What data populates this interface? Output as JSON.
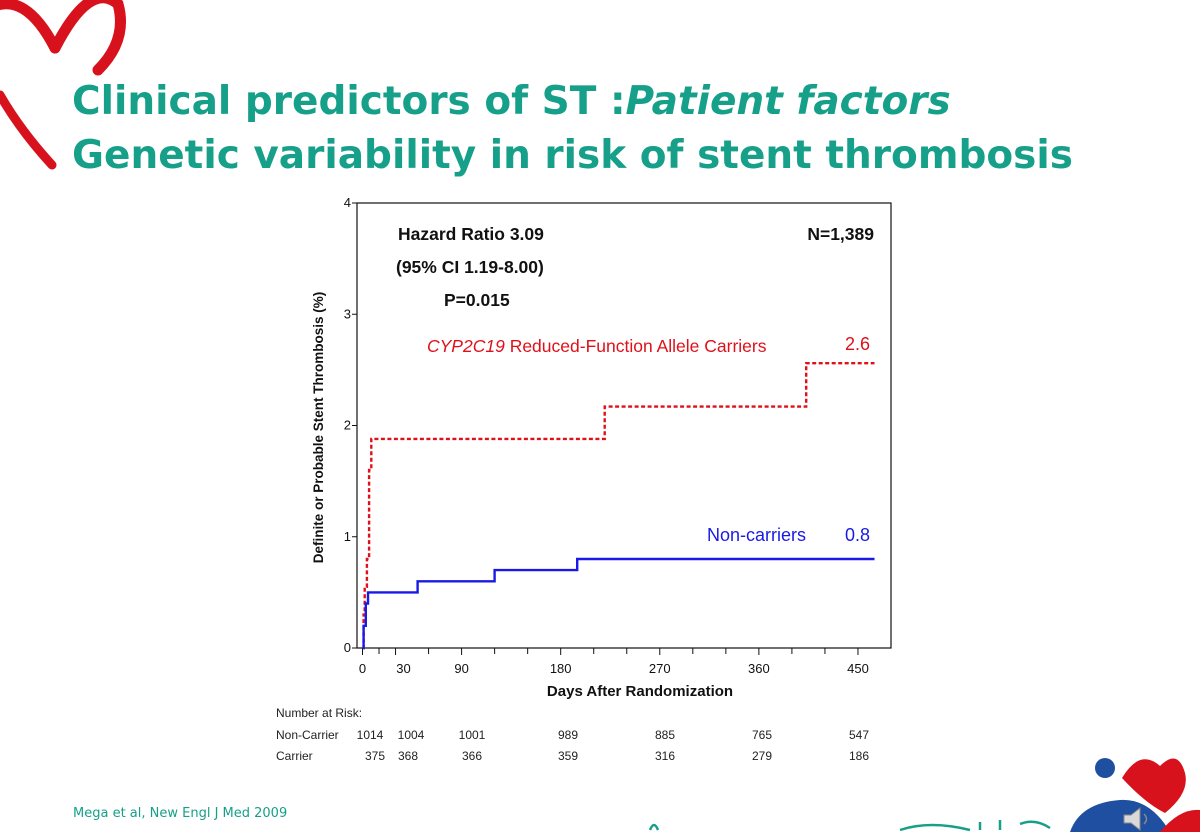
{
  "colors": {
    "title": "#16a08a",
    "carrier": "#e0101a",
    "noncarrier": "#1a1ae6",
    "logo_red": "#d8121c",
    "logo_blue": "#1f4fa0",
    "citation": "#16a08a"
  },
  "header": {
    "title_line1_main": "Clinical predictors of ST :",
    "title_line1_italic": "Patient factors",
    "title_line2": "Genetic variability in risk of stent thrombosis"
  },
  "footer": {
    "citation": "Mega et al, New Engl J Med  2009"
  },
  "icons": [
    "heart-logo-icon",
    "speaker-icon",
    "corner-logo-icon"
  ],
  "chart_data": {
    "type": "line",
    "title": "",
    "xlabel": "Days After Randomization",
    "ylabel": "Definite or Probable Stent Thrombosis (%)",
    "xlim": [
      -5,
      480
    ],
    "ylim": [
      0,
      4
    ],
    "x_ticks": [
      0,
      30,
      90,
      180,
      270,
      360,
      450
    ],
    "y_ticks": [
      0,
      1,
      2,
      3,
      4
    ],
    "grid": false,
    "step": true,
    "series": [
      {
        "name_italic": "CYP2C19",
        "name_rest": " Reduced-Function Allele Carriers",
        "end_label": "2.6",
        "style": "dashed",
        "x": [
          0,
          1,
          2,
          4,
          6,
          8,
          220,
          403,
          465
        ],
        "y": [
          0,
          0.3,
          0.55,
          0.8,
          1.6,
          1.88,
          2.17,
          2.56,
          2.56
        ]
      },
      {
        "name": "Non-carriers",
        "end_label": "0.8",
        "style": "solid",
        "x": [
          0,
          1,
          3,
          5,
          50,
          120,
          195,
          465
        ],
        "y": [
          0,
          0.2,
          0.4,
          0.5,
          0.6,
          0.7,
          0.8,
          0.8
        ]
      }
    ],
    "annotations": {
      "hazard_ratio": "Hazard Ratio 3.09",
      "ci": "(95% CI 1.19-8.00)",
      "p_value": "P=0.015",
      "n": "N=1,389"
    },
    "risk_table": {
      "title": "Number at Risk:",
      "rows": [
        {
          "label": "Non-Carrier",
          "values": [
            "1014",
            "1004",
            "1001",
            "989",
            "885",
            "765",
            "547"
          ]
        },
        {
          "label": "Carrier",
          "values": [
            "375",
            "368",
            "366",
            "359",
            "316",
            "279",
            "186"
          ]
        }
      ]
    }
  }
}
